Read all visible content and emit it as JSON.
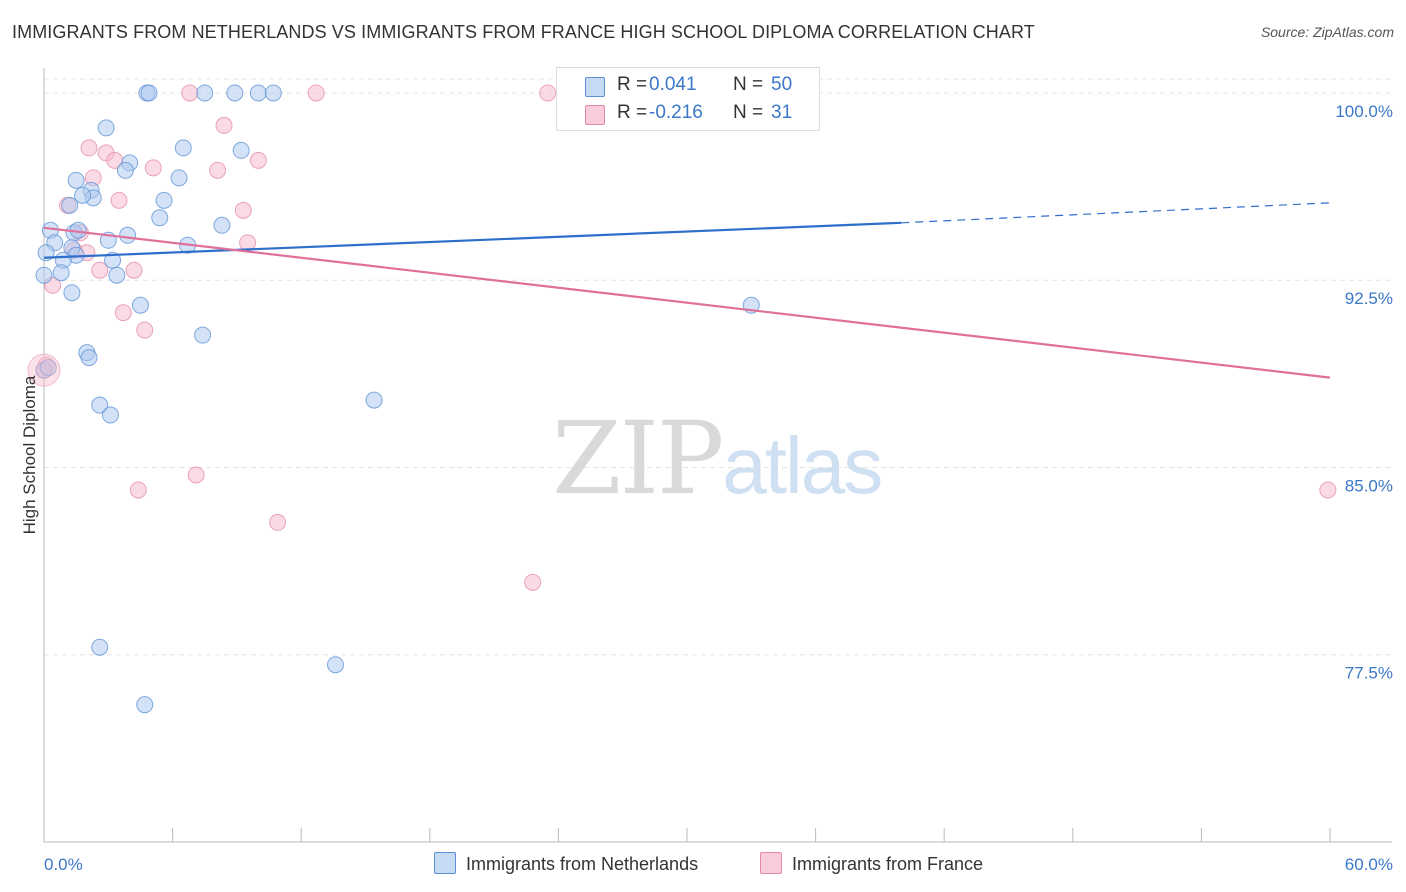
{
  "title": "IMMIGRANTS FROM NETHERLANDS VS IMMIGRANTS FROM FRANCE HIGH SCHOOL DIPLOMA CORRELATION CHART",
  "source": "Source: ZipAtlas.com",
  "watermark": {
    "zip": "ZIP",
    "atlas": "atlas"
  },
  "legend_box": {
    "r_label": "R =",
    "n_label": "N =",
    "rows": [
      {
        "r": "0.041",
        "n": "50"
      },
      {
        "r": "-0.216",
        "n": "31"
      }
    ]
  },
  "colors": {
    "netherlands_fill": "#aecbef",
    "netherlands_stroke": "#5b8fd6",
    "netherlands_line": "#2f6fcc",
    "france_fill": "#f6bccd",
    "france_stroke": "#e48aa6",
    "france_line": "#e0709a",
    "axis_label": "#3b78c7",
    "grid": "#e4e4e4"
  },
  "chart_data": {
    "type": "scatter",
    "title": "IMMIGRANTS FROM NETHERLANDS VS IMMIGRANTS FROM FRANCE HIGH SCHOOL DIPLOMA CORRELATION CHART",
    "xlabel": "",
    "ylabel": "High School Diploma",
    "x_unit": "%",
    "xlim": [
      0,
      60
    ],
    "ylim": [
      70.0,
      101.0
    ],
    "x_ticks_labeled": [
      "0.0%",
      "60.0%"
    ],
    "y_ticks": [
      {
        "value": 100.0,
        "label": "100.0%"
      },
      {
        "value": 92.5,
        "label": "92.5%"
      },
      {
        "value": 85.0,
        "label": "85.0%"
      },
      {
        "value": 77.5,
        "label": "77.5%"
      }
    ],
    "grid": true,
    "legend_position": "bottom-center",
    "series": [
      {
        "name": "Immigrants from Netherlands",
        "R": 0.041,
        "N": 50,
        "trend": {
          "x0": 0,
          "y0": 93.4,
          "x1": 40.0,
          "y1": 94.8,
          "dashed_to_x": 60,
          "dashed_to_y": 95.6
        },
        "points": [
          [
            4.8,
            100.0
          ],
          [
            4.9,
            100.0
          ],
          [
            7.5,
            100.0
          ],
          [
            8.9,
            100.0
          ],
          [
            10.0,
            100.0
          ],
          [
            10.7,
            100.0
          ],
          [
            24.4,
            100.0
          ],
          [
            2.9,
            98.6
          ],
          [
            6.5,
            97.8
          ],
          [
            9.2,
            97.7
          ],
          [
            4.0,
            97.2
          ],
          [
            3.8,
            96.9
          ],
          [
            6.3,
            96.6
          ],
          [
            1.5,
            96.5
          ],
          [
            2.2,
            96.1
          ],
          [
            2.3,
            95.8
          ],
          [
            1.8,
            95.9
          ],
          [
            5.6,
            95.7
          ],
          [
            1.2,
            95.5
          ],
          [
            5.4,
            95.0
          ],
          [
            8.3,
            94.7
          ],
          [
            0.3,
            94.5
          ],
          [
            1.4,
            94.4
          ],
          [
            1.6,
            94.5
          ],
          [
            3.9,
            94.3
          ],
          [
            3.0,
            94.1
          ],
          [
            0.5,
            94.0
          ],
          [
            6.7,
            93.9
          ],
          [
            1.3,
            93.8
          ],
          [
            0.1,
            93.6
          ],
          [
            1.5,
            93.5
          ],
          [
            0.9,
            93.3
          ],
          [
            3.2,
            93.3
          ],
          [
            3.4,
            92.7
          ],
          [
            0.0,
            92.7
          ],
          [
            0.8,
            92.8
          ],
          [
            1.3,
            92.0
          ],
          [
            4.5,
            91.5
          ],
          [
            33.0,
            91.5
          ],
          [
            7.4,
            90.3
          ],
          [
            2.0,
            89.6
          ],
          [
            2.1,
            89.4
          ],
          [
            0.0,
            88.9
          ],
          [
            15.4,
            87.7
          ],
          [
            2.6,
            87.5
          ],
          [
            3.1,
            87.1
          ],
          [
            2.6,
            77.8
          ],
          [
            13.6,
            77.1
          ],
          [
            4.7,
            75.5
          ],
          [
            0.2,
            89.0
          ]
        ]
      },
      {
        "name": "Immigrants from France",
        "R": -0.216,
        "N": 31,
        "trend": {
          "x0": 0,
          "y0": 94.6,
          "x1": 60,
          "y1": 88.6
        },
        "points": [
          [
            6.8,
            100.0
          ],
          [
            12.7,
            100.0
          ],
          [
            23.5,
            100.0
          ],
          [
            31.5,
            100.0
          ],
          [
            8.4,
            98.7
          ],
          [
            2.1,
            97.8
          ],
          [
            2.9,
            97.6
          ],
          [
            3.3,
            97.3
          ],
          [
            10.0,
            97.3
          ],
          [
            5.1,
            97.0
          ],
          [
            8.1,
            96.9
          ],
          [
            2.3,
            96.6
          ],
          [
            3.5,
            95.7
          ],
          [
            1.1,
            95.5
          ],
          [
            9.3,
            95.3
          ],
          [
            1.7,
            94.4
          ],
          [
            9.5,
            94.0
          ],
          [
            1.4,
            93.7
          ],
          [
            2.6,
            92.9
          ],
          [
            4.2,
            92.9
          ],
          [
            0.4,
            92.3
          ],
          [
            3.7,
            91.2
          ],
          [
            4.7,
            90.5
          ],
          [
            0.0,
            88.9
          ],
          [
            7.1,
            84.7
          ],
          [
            4.4,
            84.1
          ],
          [
            10.9,
            82.8
          ],
          [
            22.8,
            80.4
          ],
          [
            59.9,
            84.1
          ],
          [
            0.1,
            89.1
          ],
          [
            2.0,
            93.6
          ]
        ]
      }
    ]
  }
}
